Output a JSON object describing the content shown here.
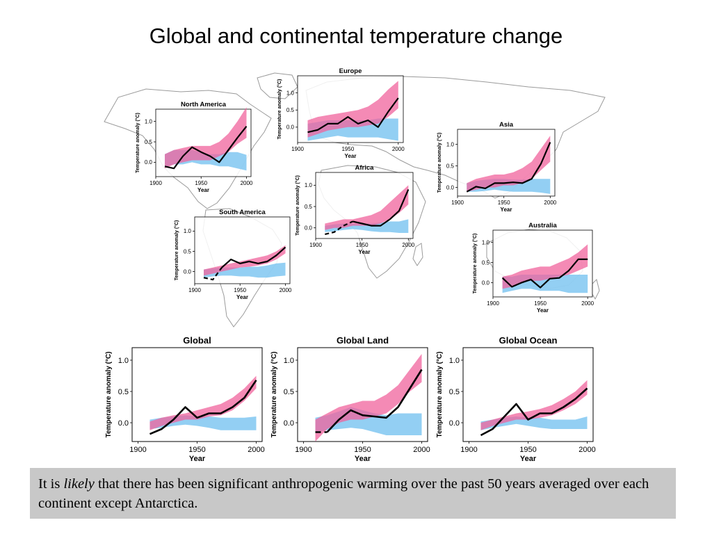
{
  "page": {
    "title": "Global and continental temperature change"
  },
  "colors": {
    "observed": "#000000",
    "natural_band": "#6fbfef",
    "natural_plus_anthro_band": "#f0639c",
    "map_outline": "#9a9a9a"
  },
  "caption": {
    "text_before": "It is ",
    "text_italic": "likely",
    "text_after": " that there has been significant anthropogenic warming over the past 50 years averaged over each continent except Antarctica."
  },
  "chart_data": [
    {
      "id": "north-america",
      "type": "line",
      "title": "North America",
      "xlabel": "Year",
      "ylabel": "Temperature anomaly (°C)",
      "xlim": [
        1900,
        2005
      ],
      "ylim": [
        -0.35,
        1.3
      ],
      "xticks": [
        "1900",
        "1950",
        "2000"
      ],
      "yticks": [
        "0.0",
        "0.5",
        "1.0"
      ],
      "x": [
        1910,
        1920,
        1930,
        1940,
        1950,
        1960,
        1970,
        1980,
        1990,
        2000
      ],
      "series": [
        {
          "name": "",
          "kind": "observed",
          "dashed_until": null,
          "values": [
            -0.1,
            -0.15,
            0.15,
            0.37,
            0.25,
            0.15,
            0.0,
            0.3,
            0.6,
            0.88
          ]
        },
        {
          "name": "",
          "kind": "natural",
          "lower": [
            -0.12,
            -0.05,
            -0.05,
            0.0,
            -0.05,
            -0.05,
            -0.1,
            -0.1,
            -0.15,
            -0.2
          ],
          "upper": [
            0.2,
            0.3,
            0.3,
            0.3,
            0.25,
            0.2,
            0.2,
            0.25,
            0.25,
            0.18
          ]
        },
        {
          "name": "",
          "kind": "natural_plus_anthro",
          "lower": [
            -0.15,
            -0.05,
            0.0,
            0.05,
            0.05,
            0.05,
            0.15,
            0.25,
            0.45,
            0.6
          ],
          "upper": [
            0.2,
            0.3,
            0.35,
            0.4,
            0.4,
            0.4,
            0.5,
            0.7,
            1.0,
            1.35
          ]
        }
      ]
    },
    {
      "id": "europe",
      "type": "line",
      "title": "Europe",
      "xlabel": "Year",
      "ylabel": "Temperature anomaly (°C)",
      "xlim": [
        1900,
        2005
      ],
      "ylim": [
        -0.45,
        1.5
      ],
      "xticks": [
        "1900",
        "1950",
        "2000"
      ],
      "yticks": [
        "0.0",
        "0.5",
        "1.0"
      ],
      "x": [
        1910,
        1920,
        1930,
        1940,
        1950,
        1960,
        1970,
        1980,
        1990,
        2000
      ],
      "series": [
        {
          "name": "",
          "kind": "observed",
          "dashed_until": null,
          "values": [
            -0.15,
            -0.08,
            0.1,
            0.1,
            0.3,
            0.1,
            0.2,
            0.0,
            0.45,
            0.85
          ]
        },
        {
          "name": "",
          "kind": "natural",
          "lower": [
            -0.4,
            -0.35,
            -0.3,
            -0.25,
            -0.3,
            -0.3,
            -0.3,
            -0.3,
            -0.35,
            -0.4
          ],
          "upper": [
            0.1,
            0.15,
            0.2,
            0.2,
            0.2,
            0.2,
            0.2,
            0.25,
            0.25,
            0.25
          ]
        },
        {
          "name": "",
          "kind": "natural_plus_anthro",
          "lower": [
            -0.3,
            -0.2,
            -0.1,
            -0.05,
            0.0,
            0.0,
            0.05,
            0.1,
            0.3,
            0.55
          ],
          "upper": [
            0.2,
            0.3,
            0.35,
            0.4,
            0.45,
            0.5,
            0.6,
            0.8,
            1.1,
            1.35
          ]
        }
      ]
    },
    {
      "id": "asia",
      "type": "line",
      "title": "Asia",
      "xlabel": "Year",
      "ylabel": "Temperature anomaly (°C)",
      "xlim": [
        1900,
        2005
      ],
      "ylim": [
        -0.2,
        1.35
      ],
      "xticks": [
        "1900",
        "1950",
        "2000"
      ],
      "yticks": [
        "0.0",
        "0.5",
        "1.0"
      ],
      "x": [
        1910,
        1920,
        1930,
        1940,
        1950,
        1960,
        1970,
        1980,
        1990,
        2000
      ],
      "series": [
        {
          "name": "",
          "kind": "observed",
          "dashed_until": null,
          "values": [
            -0.1,
            0.02,
            -0.02,
            0.1,
            0.1,
            0.12,
            0.1,
            0.2,
            0.55,
            1.05
          ]
        },
        {
          "name": "",
          "kind": "natural",
          "lower": [
            -0.1,
            -0.1,
            -0.08,
            -0.05,
            -0.08,
            -0.1,
            -0.1,
            -0.1,
            -0.12,
            -0.15
          ],
          "upper": [
            0.1,
            0.15,
            0.18,
            0.2,
            0.2,
            0.18,
            0.18,
            0.2,
            0.2,
            0.2
          ]
        },
        {
          "name": "",
          "kind": "natural_plus_anthro",
          "lower": [
            -0.1,
            -0.05,
            0.0,
            0.0,
            0.05,
            0.05,
            0.1,
            0.2,
            0.4,
            0.6
          ],
          "upper": [
            0.1,
            0.2,
            0.25,
            0.3,
            0.3,
            0.35,
            0.45,
            0.6,
            0.9,
            1.2
          ]
        }
      ]
    },
    {
      "id": "africa",
      "type": "line",
      "title": "Africa",
      "xlabel": "Year",
      "ylabel": "Temperature anomaly (°C)",
      "xlim": [
        1900,
        2005
      ],
      "ylim": [
        -0.25,
        1.3
      ],
      "xticks": [
        "1900",
        "1950",
        "2000"
      ],
      "yticks": [
        "0.0",
        "0.5",
        "1.0"
      ],
      "x": [
        1910,
        1920,
        1930,
        1940,
        1950,
        1960,
        1970,
        1980,
        1990,
        2000
      ],
      "series": [
        {
          "name": "",
          "kind": "observed",
          "dashed_until": 1940,
          "values": [
            -0.15,
            -0.1,
            0.05,
            0.15,
            0.1,
            0.05,
            0.05,
            0.2,
            0.4,
            0.9
          ]
        },
        {
          "name": "",
          "kind": "natural",
          "lower": [
            -0.1,
            -0.08,
            -0.05,
            -0.03,
            -0.05,
            -0.08,
            -0.1,
            -0.1,
            -0.12,
            -0.12
          ],
          "upper": [
            0.05,
            0.08,
            0.1,
            0.1,
            0.1,
            0.1,
            0.12,
            0.15,
            0.15,
            0.2
          ]
        },
        {
          "name": "",
          "kind": "natural_plus_anthro",
          "lower": [
            -0.05,
            0.0,
            0.0,
            0.05,
            0.05,
            0.05,
            0.1,
            0.2,
            0.35,
            0.55
          ],
          "upper": [
            0.1,
            0.15,
            0.2,
            0.2,
            0.25,
            0.3,
            0.4,
            0.6,
            0.8,
            1.0
          ]
        }
      ]
    },
    {
      "id": "south-america",
      "type": "line",
      "title": "South America",
      "xlabel": "Year",
      "ylabel": "Temperature anomaly (°C)",
      "xlim": [
        1900,
        2005
      ],
      "ylim": [
        -0.3,
        1.35
      ],
      "xticks": [
        "1900",
        "1950",
        "2000"
      ],
      "yticks": [
        "0.0",
        "0.5",
        "1.0"
      ],
      "x": [
        1910,
        1920,
        1930,
        1940,
        1950,
        1960,
        1970,
        1980,
        1990,
        2000
      ],
      "series": [
        {
          "name": "",
          "kind": "observed",
          "dashed_until": 1930,
          "values": [
            -0.15,
            -0.2,
            0.1,
            0.3,
            0.2,
            0.25,
            0.2,
            0.25,
            0.4,
            0.6
          ]
        },
        {
          "name": "",
          "kind": "natural",
          "lower": [
            -0.15,
            -0.12,
            -0.1,
            -0.1,
            -0.12,
            -0.12,
            -0.15,
            -0.15,
            -0.12,
            -0.1
          ],
          "upper": [
            0.05,
            0.08,
            0.1,
            0.1,
            0.1,
            0.12,
            0.12,
            0.15,
            0.2,
            0.22
          ]
        },
        {
          "name": "",
          "kind": "natural_plus_anthro",
          "lower": [
            -0.1,
            -0.05,
            0.0,
            0.05,
            0.1,
            0.12,
            0.15,
            0.2,
            0.3,
            0.45
          ],
          "upper": [
            0.05,
            0.1,
            0.15,
            0.2,
            0.25,
            0.3,
            0.35,
            0.4,
            0.5,
            0.65
          ]
        }
      ]
    },
    {
      "id": "australia",
      "type": "line",
      "title": "Australia",
      "xlabel": "Year",
      "ylabel": "Temperature anomaly (°C)",
      "xlim": [
        1900,
        2005
      ],
      "ylim": [
        -0.35,
        1.3
      ],
      "xticks": [
        "1900",
        "1950",
        "2000"
      ],
      "yticks": [
        "0.0",
        "0.5",
        "1.0"
      ],
      "x": [
        1910,
        1920,
        1930,
        1940,
        1950,
        1960,
        1970,
        1980,
        1990,
        2000
      ],
      "series": [
        {
          "name": "",
          "kind": "observed",
          "dashed_until": null,
          "values": [
            0.12,
            -0.1,
            0.0,
            0.08,
            -0.12,
            0.1,
            0.12,
            0.3,
            0.58,
            0.58
          ]
        },
        {
          "name": "",
          "kind": "natural",
          "lower": [
            -0.25,
            -0.2,
            -0.15,
            -0.15,
            -0.2,
            -0.2,
            -0.2,
            -0.25,
            -0.25,
            -0.25
          ],
          "upper": [
            0.15,
            0.15,
            0.2,
            0.2,
            0.2,
            0.2,
            0.2,
            0.2,
            0.2,
            0.2
          ]
        },
        {
          "name": "",
          "kind": "natural_plus_anthro",
          "lower": [
            -0.15,
            -0.1,
            0.0,
            0.05,
            0.05,
            0.1,
            0.15,
            0.2,
            0.3,
            0.4
          ],
          "upper": [
            0.15,
            0.2,
            0.3,
            0.35,
            0.4,
            0.4,
            0.5,
            0.6,
            0.75,
            0.95
          ]
        }
      ]
    },
    {
      "id": "global",
      "type": "line",
      "title": "Global",
      "xlabel": "Year",
      "ylabel": "Temperature anomaly (°C)",
      "xlim": [
        1895,
        2005
      ],
      "ylim": [
        -0.3,
        1.2
      ],
      "xticks": [
        "1900",
        "1950",
        "2000"
      ],
      "yticks": [
        "0.0",
        "0.5",
        "1.0"
      ],
      "x": [
        1910,
        1920,
        1930,
        1940,
        1950,
        1960,
        1970,
        1980,
        1990,
        2000
      ],
      "series": [
        {
          "name": "",
          "kind": "observed",
          "dashed_until": null,
          "values": [
            -0.18,
            -0.1,
            0.05,
            0.25,
            0.08,
            0.15,
            0.15,
            0.25,
            0.4,
            0.68
          ]
        },
        {
          "name": "",
          "kind": "natural",
          "lower": [
            -0.1,
            -0.08,
            -0.05,
            -0.03,
            -0.05,
            -0.08,
            -0.12,
            -0.12,
            -0.12,
            -0.12
          ],
          "upper": [
            0.05,
            0.08,
            0.1,
            0.12,
            0.1,
            0.1,
            0.08,
            0.08,
            0.08,
            0.1
          ]
        },
        {
          "name": "",
          "kind": "natural_plus_anthro",
          "lower": [
            -0.12,
            -0.05,
            0.0,
            0.05,
            0.05,
            0.1,
            0.12,
            0.2,
            0.35,
            0.55
          ],
          "upper": [
            0.02,
            0.08,
            0.12,
            0.15,
            0.2,
            0.25,
            0.3,
            0.4,
            0.55,
            0.75
          ]
        }
      ]
    },
    {
      "id": "global-land",
      "type": "line",
      "title": "Global Land",
      "xlabel": "Year",
      "ylabel": "Temperature anomaly (°C)",
      "xlim": [
        1895,
        2005
      ],
      "ylim": [
        -0.3,
        1.2
      ],
      "xticks": [
        "1900",
        "1950",
        "2000"
      ],
      "yticks": [
        "0.0",
        "0.5",
        "1.0"
      ],
      "x": [
        1910,
        1920,
        1930,
        1940,
        1950,
        1960,
        1970,
        1980,
        1990,
        2000
      ],
      "series": [
        {
          "name": "",
          "kind": "observed",
          "dashed_until": 1920,
          "values": [
            -0.15,
            -0.15,
            0.05,
            0.2,
            0.12,
            0.1,
            0.08,
            0.25,
            0.55,
            0.85
          ]
        },
        {
          "name": "",
          "kind": "natural",
          "lower": [
            -0.15,
            -0.12,
            -0.1,
            -0.08,
            -0.1,
            -0.15,
            -0.2,
            -0.2,
            -0.2,
            -0.2
          ],
          "upper": [
            0.08,
            0.12,
            0.18,
            0.25,
            0.2,
            0.15,
            0.12,
            0.15,
            0.15,
            0.15
          ]
        },
        {
          "name": "",
          "kind": "natural_plus_anthro",
          "lower": [
            -0.3,
            -0.1,
            0.0,
            0.05,
            0.05,
            0.1,
            0.15,
            0.3,
            0.5,
            0.65
          ],
          "upper": [
            0.05,
            0.15,
            0.25,
            0.3,
            0.35,
            0.35,
            0.45,
            0.6,
            0.85,
            1.1
          ]
        }
      ]
    },
    {
      "id": "global-ocean",
      "type": "line",
      "title": "Global Ocean",
      "xlabel": "Year",
      "ylabel": "Temperature anomaly (°C)",
      "xlim": [
        1895,
        2005
      ],
      "ylim": [
        -0.3,
        1.2
      ],
      "xticks": [
        "1900",
        "1950",
        "2000"
      ],
      "yticks": [
        "0.0",
        "0.5",
        "1.0"
      ],
      "x": [
        1910,
        1920,
        1930,
        1940,
        1950,
        1960,
        1970,
        1980,
        1990,
        2000
      ],
      "series": [
        {
          "name": "",
          "kind": "observed",
          "dashed_until": null,
          "values": [
            -0.2,
            -0.1,
            0.1,
            0.3,
            0.05,
            0.15,
            0.15,
            0.25,
            0.38,
            0.55
          ]
        },
        {
          "name": "",
          "kind": "natural",
          "lower": [
            -0.12,
            -0.08,
            -0.05,
            -0.02,
            -0.05,
            -0.08,
            -0.1,
            -0.1,
            -0.1,
            -0.1
          ],
          "upper": [
            0.02,
            0.05,
            0.08,
            0.1,
            0.08,
            0.08,
            0.05,
            0.05,
            0.05,
            0.1
          ]
        },
        {
          "name": "",
          "kind": "natural_plus_anthro",
          "lower": [
            -0.12,
            -0.05,
            0.0,
            0.05,
            0.05,
            0.08,
            0.12,
            0.2,
            0.3,
            0.45
          ],
          "upper": [
            0.0,
            0.05,
            0.1,
            0.15,
            0.18,
            0.22,
            0.28,
            0.38,
            0.5,
            0.68
          ]
        }
      ]
    }
  ]
}
